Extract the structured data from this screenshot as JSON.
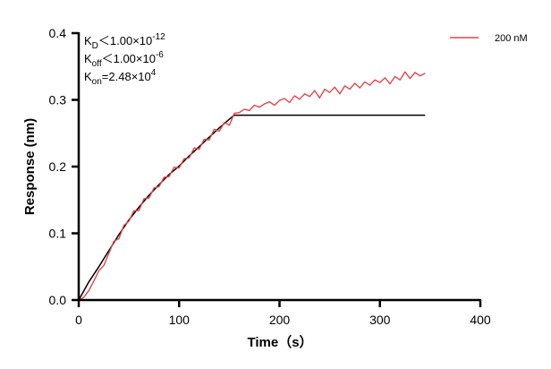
{
  "chart_data": {
    "type": "line",
    "title": "",
    "xlabel": "Time（s）",
    "ylabel": "Response (nm)",
    "xlim": [
      0,
      400
    ],
    "ylim": [
      0,
      0.4
    ],
    "xticks": [
      "0",
      "100",
      "200",
      "300",
      "400"
    ],
    "yticks": [
      "0.0",
      "0.1",
      "0.2",
      "0.3",
      "0.4"
    ],
    "grid": false,
    "legend_position": "top-right",
    "annotations": [
      {
        "main": "K",
        "sub": "D",
        "rel": "＜1.00×10",
        "sup": "-12"
      },
      {
        "main": "K",
        "sub": "off",
        "rel": "＜1.00×10",
        "sup": "-6"
      },
      {
        "main": "K",
        "sub": "on",
        "rel": "=2.48×10",
        "sup": "4"
      }
    ],
    "series": [
      {
        "name": "200 nM",
        "color": "#e0474c",
        "x": [
          0,
          5,
          10,
          15,
          20,
          25,
          30,
          35,
          40,
          45,
          50,
          55,
          60,
          65,
          70,
          75,
          80,
          85,
          90,
          95,
          100,
          105,
          110,
          115,
          120,
          125,
          130,
          135,
          140,
          145,
          150,
          155,
          160,
          165,
          170,
          175,
          180,
          185,
          190,
          195,
          200,
          205,
          210,
          215,
          220,
          225,
          230,
          235,
          240,
          245,
          250,
          255,
          260,
          265,
          270,
          275,
          280,
          285,
          290,
          295,
          300,
          305,
          310,
          315,
          320,
          325,
          330,
          335,
          340,
          345
        ],
        "y": [
          0,
          0.004,
          0.014,
          0.028,
          0.044,
          0.052,
          0.07,
          0.088,
          0.092,
          0.112,
          0.118,
          0.134,
          0.134,
          0.152,
          0.153,
          0.168,
          0.17,
          0.184,
          0.185,
          0.199,
          0.198,
          0.212,
          0.213,
          0.228,
          0.226,
          0.241,
          0.24,
          0.256,
          0.253,
          0.266,
          0.262,
          0.28,
          0.281,
          0.286,
          0.284,
          0.292,
          0.289,
          0.294,
          0.297,
          0.292,
          0.299,
          0.302,
          0.296,
          0.306,
          0.301,
          0.309,
          0.305,
          0.314,
          0.303,
          0.316,
          0.311,
          0.319,
          0.309,
          0.321,
          0.316,
          0.325,
          0.318,
          0.327,
          0.322,
          0.33,
          0.326,
          0.333,
          0.324,
          0.335,
          0.33,
          0.342,
          0.332,
          0.341,
          0.336,
          0.34
        ]
      },
      {
        "color": "#000000",
        "x": [
          0,
          10,
          20,
          30,
          40,
          50,
          60,
          70,
          80,
          90,
          100,
          110,
          120,
          130,
          140,
          150,
          155,
          345
        ],
        "y": [
          0,
          0.027,
          0.05,
          0.074,
          0.098,
          0.12,
          0.139,
          0.157,
          0.173,
          0.188,
          0.201,
          0.216,
          0.23,
          0.244,
          0.258,
          0.271,
          0.277,
          0.277
        ]
      }
    ]
  }
}
